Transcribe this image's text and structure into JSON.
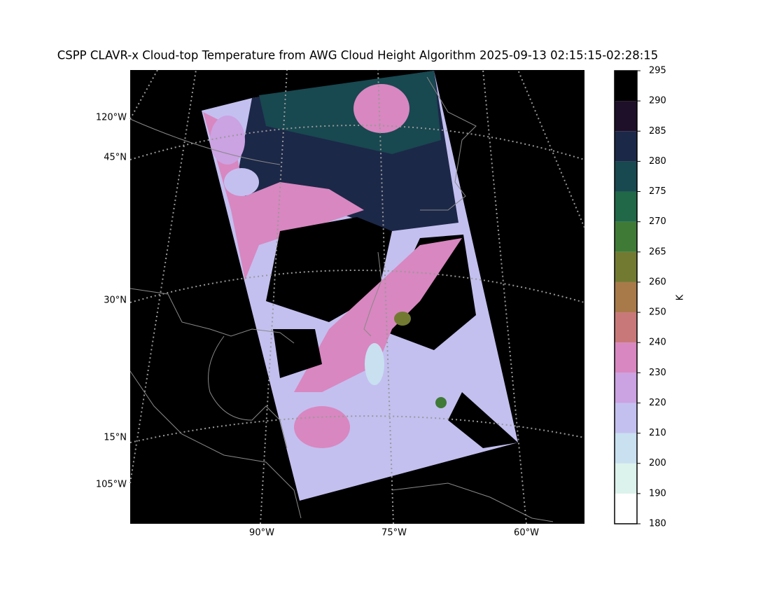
{
  "title": "CSPP CLAVR-x Cloud-top Temperature from AWG Cloud Height Algorithm 2025-09-13 02:15:15-02:28:15",
  "map": {
    "left_labels": [
      "120°W",
      "45°N",
      "30°N",
      "15°N",
      "105°W"
    ],
    "bottom_labels": [
      "90°W",
      "75°W",
      "60°W"
    ]
  },
  "colorbar": {
    "label": "K",
    "ticks": [
      180,
      190,
      200,
      210,
      220,
      230,
      240,
      250,
      260,
      265,
      270,
      275,
      280,
      285,
      290,
      295
    ],
    "colors": [
      "#ffffff",
      "#dcf2ec",
      "#c8e0f0",
      "#c3c0f0",
      "#cba2e2",
      "#d887c0",
      "#c87878",
      "#a87a4a",
      "#727a32",
      "#3f7a36",
      "#206848",
      "#184850",
      "#1c2848",
      "#1e1028",
      "#000000"
    ]
  }
}
